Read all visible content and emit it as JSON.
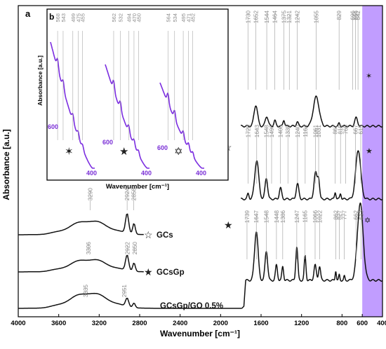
{
  "chart_data": {
    "type": "line",
    "panel_label": "a",
    "xlabel": "Wavenumber [cm⁻¹]",
    "ylabel": "Absorbance [a.u.]",
    "xlim": [
      4000,
      400
    ],
    "x_ticks": [
      4000,
      3600,
      3200,
      2800,
      2400,
      2000,
      1600,
      1200,
      800,
      600,
      400
    ],
    "highlight_region": [
      600,
      400
    ],
    "highlight_color": "#b68cff",
    "line_color": "#111111",
    "inset_color": "#7b2de0",
    "series": [
      {
        "name": "GCs",
        "symbol": "☆",
        "peaks_left": [
          "3290",
          "2924",
          "2858"
        ],
        "peaks_right": [
          "1730",
          "1652",
          "1544",
          "1464",
          "1375",
          "1321",
          "1242",
          "1055",
          "829",
          "696",
          "666",
          "642"
        ],
        "right_symbol": "✶"
      },
      {
        "name": "GCsGp",
        "symbol": "★",
        "peaks_left": [
          "3306",
          "2922",
          "2850"
        ],
        "peaks_right": [
          "1728",
          "1643",
          "1548",
          "1496",
          "1408",
          "1335",
          "1240",
          "1164",
          "1061",
          "1031",
          "867",
          "815",
          "765",
          "667",
          "615"
        ],
        "right_symbol": "★"
      },
      {
        "name": "GCsGp/GO 0.5%",
        "symbol": "",
        "peaks_left": [
          "3335",
          "2951"
        ],
        "peaks_right": [
          "1739",
          "1647",
          "1548",
          "1448",
          "1386",
          "1247",
          "1165",
          "1066",
          "1022",
          "862",
          "827",
          "777",
          "662",
          "613"
        ],
        "right_symbol": "✡"
      }
    ],
    "inset": {
      "panel_label": "b",
      "xlabel": "Wavenumber [cm⁻¹]",
      "ylabel": "Absorbance [a.u.]",
      "range_start": "600",
      "range_end": "400",
      "groups": [
        {
          "symbol": "✶",
          "peaks": [
            "568",
            "543",
            "499",
            "475",
            "455"
          ]
        },
        {
          "symbol": "★",
          "peaks": [
            "562",
            "532",
            "494",
            "470",
            "450"
          ]
        },
        {
          "symbol": "✡",
          "peaks": [
            "564",
            "534",
            "495",
            "471",
            "452"
          ]
        }
      ]
    }
  }
}
